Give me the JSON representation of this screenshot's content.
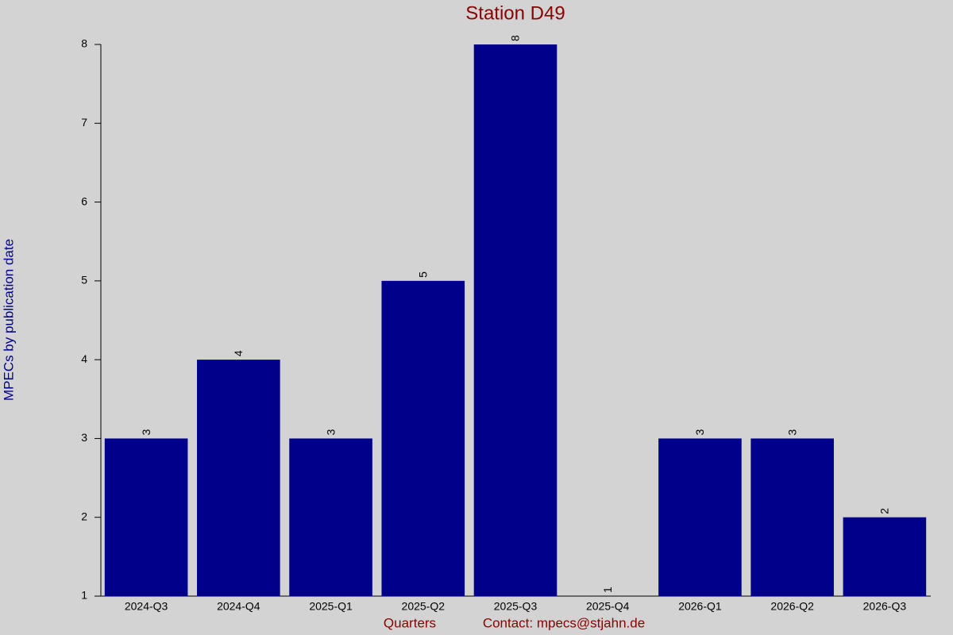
{
  "chart_data": {
    "type": "bar",
    "title": "Station D49",
    "y_label": "MPECs by publication date",
    "x_label": "Quarters",
    "contact": "Contact: mpecs@stjahn.de",
    "categories": [
      "2024-Q3",
      "2024-Q4",
      "2025-Q1",
      "2025-Q2",
      "2025-Q3",
      "2025-Q4",
      "2026-Q1",
      "2026-Q2",
      "2026-Q3"
    ],
    "values": [
      3,
      4,
      3,
      5,
      8,
      1,
      3,
      3,
      2
    ],
    "color": "#00008b",
    "ylim": [
      1,
      8
    ],
    "yticks": [
      1,
      2,
      3,
      4,
      5,
      6,
      7,
      8
    ],
    "grid": false
  }
}
